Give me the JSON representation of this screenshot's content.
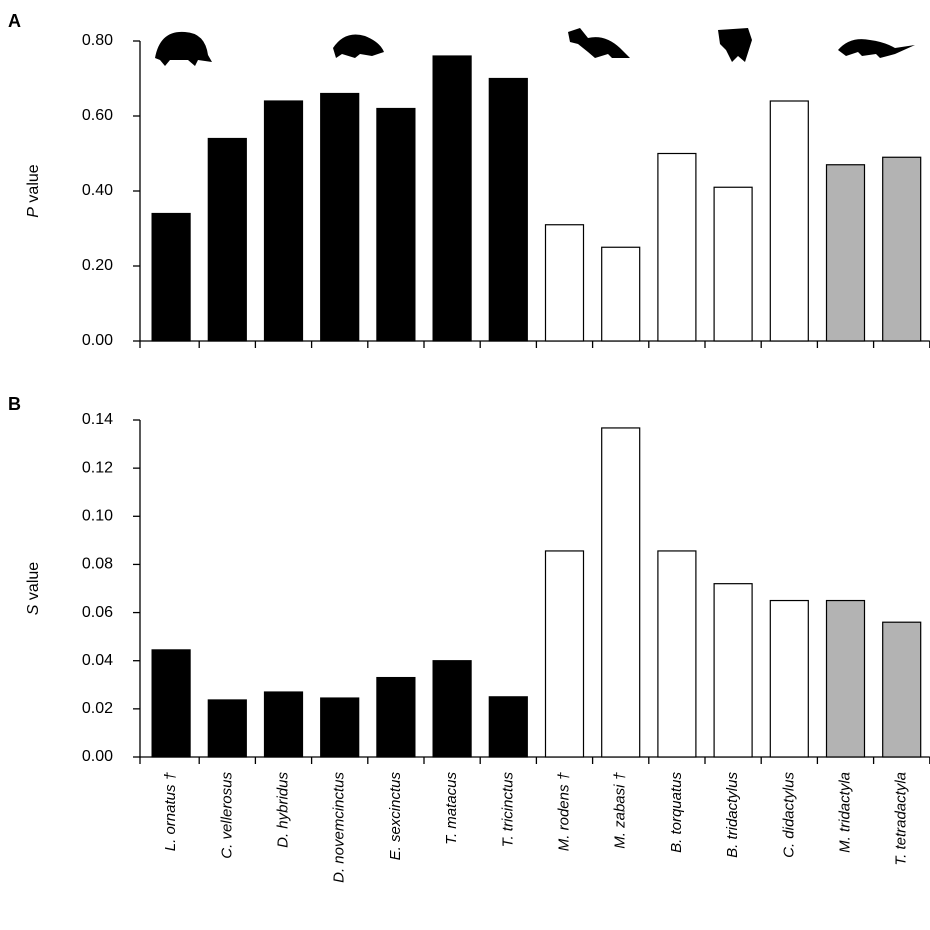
{
  "chart_data": [
    {
      "type": "bar",
      "panel": "A",
      "y_label": "P value",
      "values": [
        0.34,
        0.54,
        0.64,
        0.66,
        0.62,
        0.76,
        0.7,
        0.31,
        0.25,
        0.5,
        0.41,
        0.64,
        0.47,
        0.49
      ],
      "colors": [
        "#000000",
        "#000000",
        "#000000",
        "#000000",
        "#000000",
        "#000000",
        "#000000",
        "#ffffff",
        "#ffffff",
        "#ffffff",
        "#ffffff",
        "#ffffff",
        "#b3b3b3",
        "#b3b3b3"
      ],
      "ylim": [
        0,
        0.8
      ],
      "yticks": [
        {
          "value": 0,
          "label": "0.00"
        },
        {
          "value": 0.2,
          "label": "0.20"
        },
        {
          "value": 0.4,
          "label": "0.40"
        },
        {
          "value": 0.6,
          "label": "0.60"
        },
        {
          "value": 0.8,
          "label": "0.80"
        }
      ]
    },
    {
      "type": "bar",
      "panel": "B",
      "y_label": "S value",
      "categories": [
        "L. ornatus †",
        "C. vellerosus",
        "D. hybridus",
        "D. novemcinctus",
        "E. sexcinctus",
        "T. matacus",
        "T. tricinctus",
        "M. rodens †",
        "M. zabasi †",
        "B. torquatus",
        "B. tridactylus",
        "C. didactylus",
        "M. tridactyla",
        "T. tetradactyla"
      ],
      "values": [
        0.0445,
        0.0237,
        0.027,
        0.0245,
        0.033,
        0.04,
        0.025,
        0.0856,
        0.1367,
        0.0856,
        0.072,
        0.065,
        0.065,
        0.056
      ],
      "colors": [
        "#000000",
        "#000000",
        "#000000",
        "#000000",
        "#000000",
        "#000000",
        "#000000",
        "#ffffff",
        "#ffffff",
        "#ffffff",
        "#ffffff",
        "#ffffff",
        "#b3b3b3",
        "#b3b3b3"
      ],
      "ylim": [
        0,
        0.14
      ],
      "yticks": [
        {
          "value": 0,
          "label": "0.00"
        },
        {
          "value": 0.02,
          "label": "0.02"
        },
        {
          "value": 0.04,
          "label": "0.04"
        },
        {
          "value": 0.06,
          "label": "0.06"
        },
        {
          "value": 0.08,
          "label": "0.08"
        },
        {
          "value": 0.1,
          "label": "0.10"
        },
        {
          "value": 0.12,
          "label": "0.12"
        },
        {
          "value": 0.14,
          "label": "0.14"
        }
      ]
    }
  ]
}
